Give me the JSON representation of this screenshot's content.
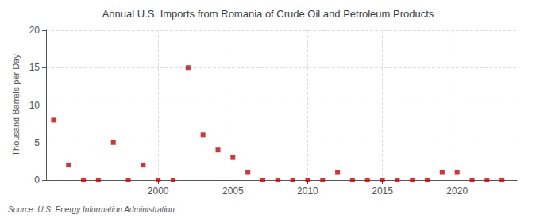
{
  "chart_data": {
    "type": "scatter",
    "title": "Annual U.S. Imports from Romania of Crude Oil and Petroleum Products",
    "ylabel": "Thousand Barrels per Day",
    "annotation": "Source: U.S. Energy Information Administration",
    "x": [
      1993,
      1994,
      1995,
      1996,
      1997,
      1998,
      1999,
      2000,
      2001,
      2002,
      2003,
      2004,
      2005,
      2006,
      2007,
      2008,
      2009,
      2010,
      2011,
      2012,
      2013,
      2014,
      2015,
      2016,
      2017,
      2018,
      2019,
      2020,
      2021,
      2022,
      2023
    ],
    "values": [
      8,
      2,
      0,
      0,
      5,
      0,
      2,
      0,
      0,
      15,
      6,
      4,
      3,
      1,
      0,
      0,
      0,
      0,
      0,
      1,
      0,
      0,
      0,
      0,
      0,
      0,
      1,
      1,
      0,
      0,
      0
    ],
    "color": "#cc0000",
    "marker": "square",
    "xlim": [
      1992.5,
      2024
    ],
    "xticks": [
      2000,
      2005,
      2010,
      2015,
      2020
    ],
    "ylim": [
      0,
      20
    ],
    "yticks": [
      0,
      5,
      10,
      15,
      20
    ],
    "grid": true
  }
}
